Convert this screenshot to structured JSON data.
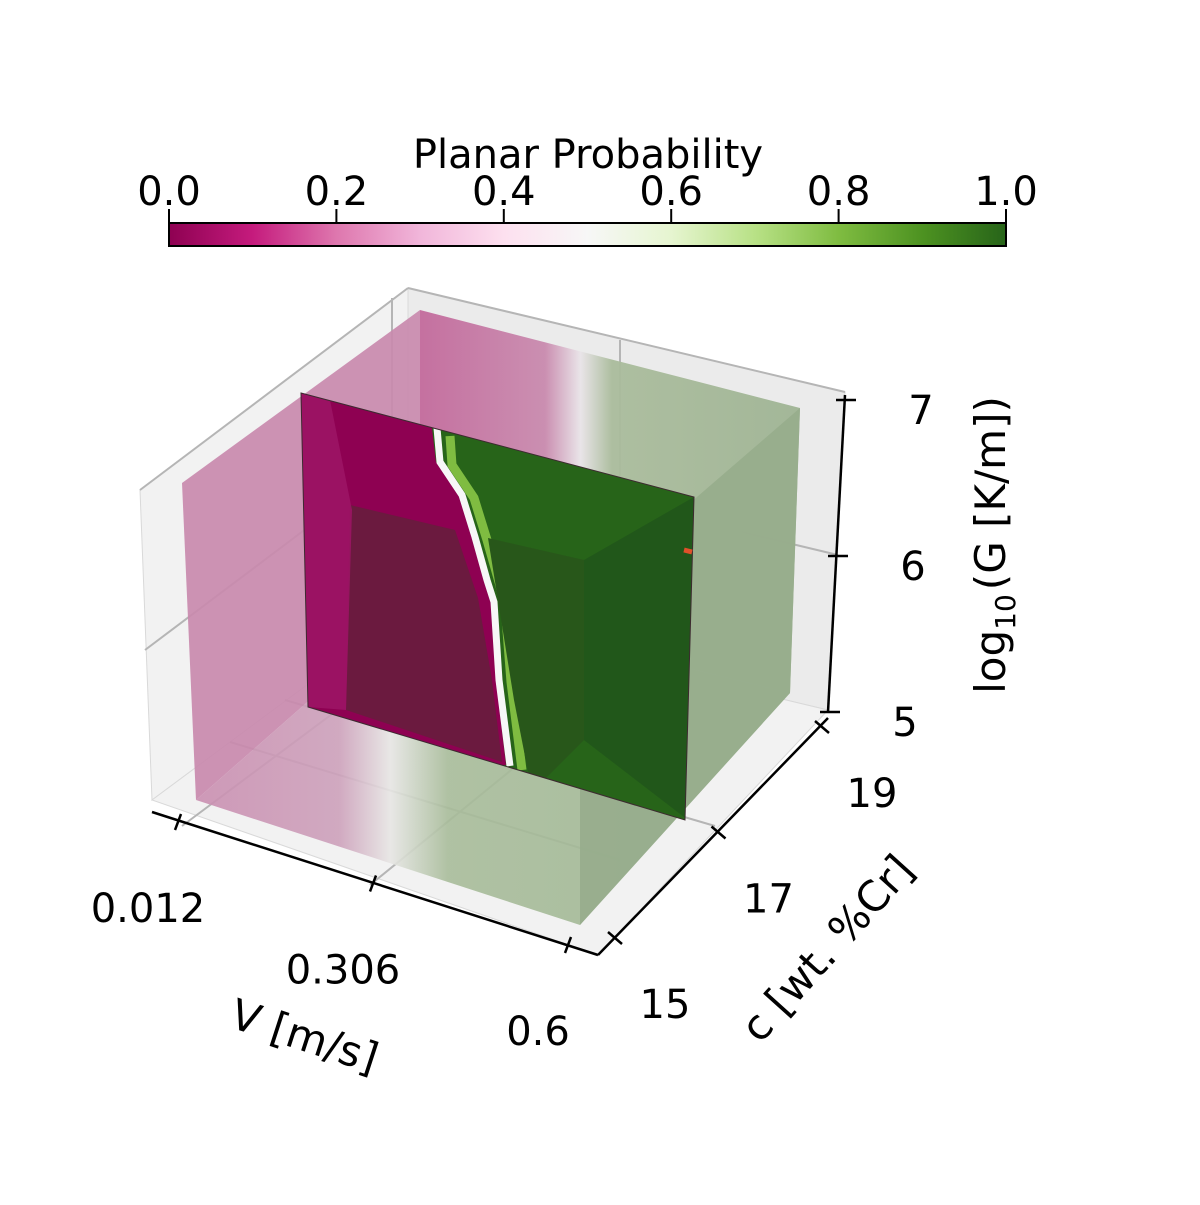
{
  "colorbar": {
    "title": "Planar Probability",
    "range": [
      0.0,
      1.0
    ],
    "ticks": [
      "0.0",
      "0.2",
      "0.4",
      "0.6",
      "0.8",
      "1.0"
    ],
    "colormap": "PiYG",
    "stops": [
      "#8e0152",
      "#c51b7d",
      "#de77ae",
      "#f1b6da",
      "#fde0ef",
      "#f7f7f7",
      "#e6f5d0",
      "#b8e186",
      "#7fbc41",
      "#4d9221",
      "#276419"
    ]
  },
  "chart_data": {
    "type": "heatmap",
    "subtype": "3d volume slices",
    "title": "",
    "axes": {
      "x": {
        "label": "V [m/s]",
        "ticks": [
          "0.012",
          "0.306",
          "0.6"
        ],
        "range": [
          0.012,
          0.6
        ]
      },
      "y": {
        "label": "c [wt. %Cr]",
        "ticks": [
          "15",
          "17",
          "19"
        ],
        "range": [
          15,
          19
        ]
      },
      "z": {
        "label_prefix": "log",
        "label_subscript": "10",
        "label_suffix": "(G [K/m])",
        "ticks": [
          "5",
          "6",
          "7"
        ],
        "range": [
          5,
          7
        ]
      }
    },
    "value": "Planar Probability",
    "value_range": [
      0,
      1
    ],
    "description_of_field": "Low velocity region has probability near 0 (magenta); high velocity region has probability near 1 (green); the transition boundary shifts toward higher velocity at lower G.",
    "boundary_samples": [
      {
        "log10_G": 7.0,
        "V_transition": 0.27
      },
      {
        "log10_G": 6.5,
        "V_transition": 0.3
      },
      {
        "log10_G": 6.0,
        "V_transition": 0.34
      },
      {
        "log10_G": 5.5,
        "V_transition": 0.36
      },
      {
        "log10_G": 5.0,
        "V_transition": 0.38
      }
    ],
    "grid": true,
    "colors": {
      "low": "#8e0152",
      "mid": "#f7f7f7",
      "high": "#276419",
      "marker": "#e0502a"
    }
  }
}
